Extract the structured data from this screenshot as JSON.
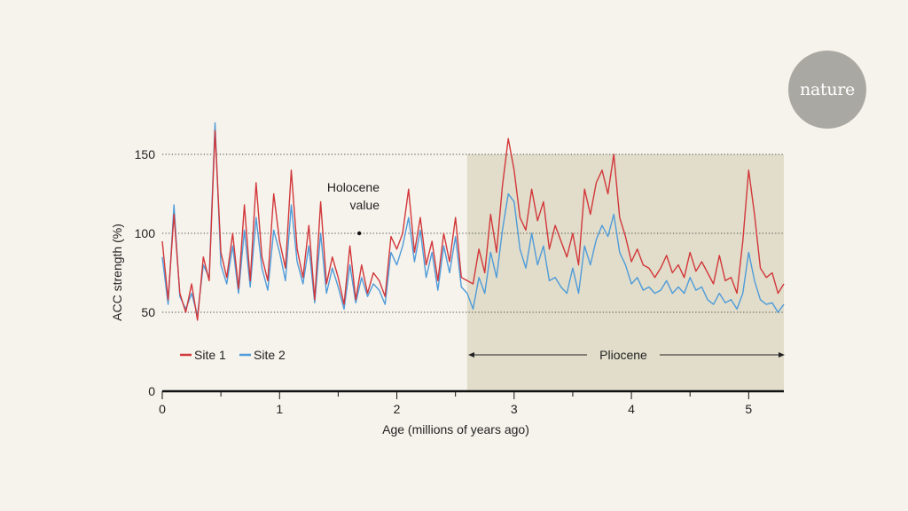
{
  "brand": {
    "logo_text": "nature"
  },
  "colors": {
    "site1": "#d2373a",
    "site2": "#4f9bd9",
    "background": "#f6f3ec",
    "pliocene": "#e1ddca"
  },
  "chart_data": {
    "type": "line",
    "title": "",
    "xlabel": "Age (millions of years ago)",
    "ylabel": "ACC strength (%)",
    "xlim": [
      0,
      5.3
    ],
    "ylim": [
      0,
      150
    ],
    "x_ticks": [
      "0",
      "1",
      "2",
      "3",
      "4",
      "5"
    ],
    "y_ticks": [
      "0",
      "50",
      "100",
      "150"
    ],
    "gridlines_y": [
      50,
      100,
      150
    ],
    "shaded_region": {
      "label": "Pliocene",
      "x_start": 2.6,
      "x_end": 5.3
    },
    "annotation": {
      "line1": "Holocene",
      "line2": "value",
      "x": 1.68,
      "y": 100
    },
    "legend": {
      "items": [
        "Site 1",
        "Site 2"
      ],
      "placement": "lower-left"
    },
    "series": [
      {
        "name": "Site 1",
        "color": "#d2373a",
        "x": [
          0.0,
          0.05,
          0.1,
          0.15,
          0.2,
          0.25,
          0.3,
          0.35,
          0.4,
          0.45,
          0.5,
          0.55,
          0.6,
          0.65,
          0.7,
          0.75,
          0.8,
          0.85,
          0.9,
          0.95,
          1.0,
          1.05,
          1.1,
          1.15,
          1.2,
          1.25,
          1.3,
          1.35,
          1.4,
          1.45,
          1.5,
          1.55,
          1.6,
          1.65,
          1.7,
          1.75,
          1.8,
          1.85,
          1.9,
          1.95,
          2.0,
          2.05,
          2.1,
          2.15,
          2.2,
          2.25,
          2.3,
          2.35,
          2.4,
          2.45,
          2.5,
          2.55,
          2.6,
          2.65,
          2.7,
          2.75,
          2.8,
          2.85,
          2.9,
          2.95,
          3.0,
          3.05,
          3.1,
          3.15,
          3.2,
          3.25,
          3.3,
          3.35,
          3.4,
          3.45,
          3.5,
          3.55,
          3.6,
          3.65,
          3.7,
          3.75,
          3.8,
          3.85,
          3.9,
          3.95,
          4.0,
          4.05,
          4.1,
          4.15,
          4.2,
          4.25,
          4.3,
          4.35,
          4.4,
          4.45,
          4.5,
          4.55,
          4.6,
          4.65,
          4.7,
          4.75,
          4.8,
          4.85,
          4.9,
          4.95,
          5.0,
          5.05,
          5.1,
          5.15,
          5.2,
          5.25,
          5.3
        ],
        "values": [
          95,
          58,
          112,
          62,
          50,
          68,
          45,
          85,
          70,
          165,
          88,
          72,
          100,
          65,
          118,
          70,
          132,
          85,
          70,
          125,
          95,
          78,
          140,
          90,
          72,
          105,
          58,
          120,
          68,
          85,
          72,
          55,
          92,
          58,
          80,
          62,
          75,
          70,
          60,
          98,
          90,
          100,
          128,
          88,
          110,
          80,
          95,
          70,
          100,
          82,
          110,
          72,
          70,
          68,
          90,
          75,
          112,
          88,
          130,
          160,
          140,
          110,
          102,
          128,
          108,
          120,
          90,
          105,
          95,
          85,
          100,
          80,
          128,
          112,
          132,
          140,
          125,
          150,
          110,
          98,
          82,
          90,
          80,
          78,
          72,
          78,
          86,
          75,
          80,
          72,
          88,
          76,
          82,
          75,
          68,
          86,
          70,
          72,
          62,
          95,
          140,
          112,
          78,
          72,
          75,
          62,
          68
        ]
      },
      {
        "name": "Site 2",
        "color": "#4f9bd9",
        "x": [
          0.0,
          0.05,
          0.1,
          0.15,
          0.2,
          0.25,
          0.3,
          0.35,
          0.4,
          0.45,
          0.5,
          0.55,
          0.6,
          0.65,
          0.7,
          0.75,
          0.8,
          0.85,
          0.9,
          0.95,
          1.0,
          1.05,
          1.1,
          1.15,
          1.2,
          1.25,
          1.3,
          1.35,
          1.4,
          1.45,
          1.5,
          1.55,
          1.6,
          1.65,
          1.7,
          1.75,
          1.8,
          1.85,
          1.9,
          1.95,
          2.0,
          2.05,
          2.1,
          2.15,
          2.2,
          2.25,
          2.3,
          2.35,
          2.4,
          2.45,
          2.5,
          2.55,
          2.6,
          2.65,
          2.7,
          2.75,
          2.8,
          2.85,
          2.9,
          2.95,
          3.0,
          3.05,
          3.1,
          3.15,
          3.2,
          3.25,
          3.3,
          3.35,
          3.4,
          3.45,
          3.5,
          3.55,
          3.6,
          3.65,
          3.7,
          3.75,
          3.8,
          3.85,
          3.9,
          3.95,
          4.0,
          4.05,
          4.1,
          4.15,
          4.2,
          4.25,
          4.3,
          4.35,
          4.4,
          4.45,
          4.5,
          4.55,
          4.6,
          4.65,
          4.7,
          4.75,
          4.8,
          4.85,
          4.9,
          4.95,
          5.0,
          5.05,
          5.1,
          5.15,
          5.2,
          5.25,
          5.3
        ],
        "values": [
          85,
          55,
          118,
          60,
          52,
          62,
          48,
          80,
          72,
          170,
          80,
          68,
          92,
          62,
          102,
          66,
          110,
          78,
          64,
          102,
          88,
          70,
          118,
          82,
          68,
          92,
          56,
          100,
          62,
          78,
          66,
          52,
          80,
          56,
          72,
          60,
          68,
          64,
          55,
          88,
          80,
          92,
          110,
          82,
          102,
          72,
          88,
          64,
          92,
          75,
          98,
          66,
          62,
          52,
          72,
          62,
          88,
          72,
          102,
          125,
          120,
          90,
          78,
          100,
          80,
          92,
          70,
          72,
          66,
          62,
          78,
          62,
          92,
          80,
          96,
          105,
          98,
          112,
          88,
          80,
          68,
          72,
          64,
          66,
          62,
          64,
          70,
          62,
          66,
          62,
          72,
          64,
          66,
          58,
          55,
          62,
          56,
          58,
          52,
          62,
          88,
          70,
          58,
          55,
          56,
          50,
          55
        ]
      }
    ]
  }
}
